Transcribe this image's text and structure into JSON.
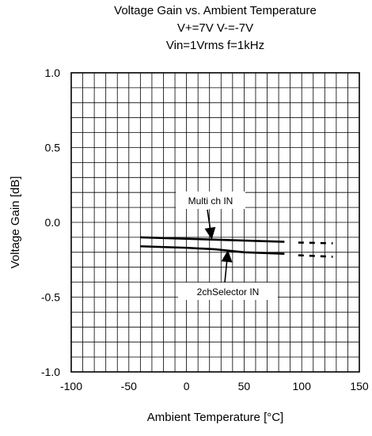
{
  "chart_data": {
    "type": "line",
    "title": "Voltage Gain vs. Ambient Temperature",
    "subtitle_lines": [
      "V+=7V V-=-7V",
      "Vin=1Vrms f=1kHz"
    ],
    "xlabel": "Ambient Temperature [°C]",
    "ylabel": "Voltage Gain [dB]",
    "xlim": [
      -100,
      150
    ],
    "ylim": [
      -1.0,
      1.0
    ],
    "x_ticks": [
      "-100",
      "-50",
      "0",
      "50",
      "100",
      "150"
    ],
    "y_ticks": [
      "1.0",
      "0.5",
      "0.0",
      "-0.5",
      "-1.0"
    ],
    "grid": true,
    "series": [
      {
        "name": "Multi ch IN",
        "solid": {
          "x": [
            -40,
            85
          ],
          "y": [
            -0.1,
            -0.13
          ]
        },
        "dashed": {
          "x": [
            97,
            127
          ],
          "y": [
            -0.135,
            -0.14
          ]
        }
      },
      {
        "name": "2chSelector IN",
        "solid": {
          "x": [
            -40,
            0,
            25,
            50,
            85
          ],
          "y": [
            -0.16,
            -0.17,
            -0.18,
            -0.2,
            -0.21
          ]
        },
        "dashed": {
          "x": [
            97,
            127
          ],
          "y": [
            -0.22,
            -0.23
          ]
        }
      }
    ],
    "annotations": [
      {
        "text": "Multi ch IN",
        "points_to_x": 22,
        "points_to_y": -0.115
      },
      {
        "text": "2chSelector IN",
        "points_to_x": 36,
        "points_to_y": -0.185
      }
    ],
    "colors": {
      "line": "#000000",
      "grid": "#000000",
      "background": "#ffffff"
    }
  }
}
